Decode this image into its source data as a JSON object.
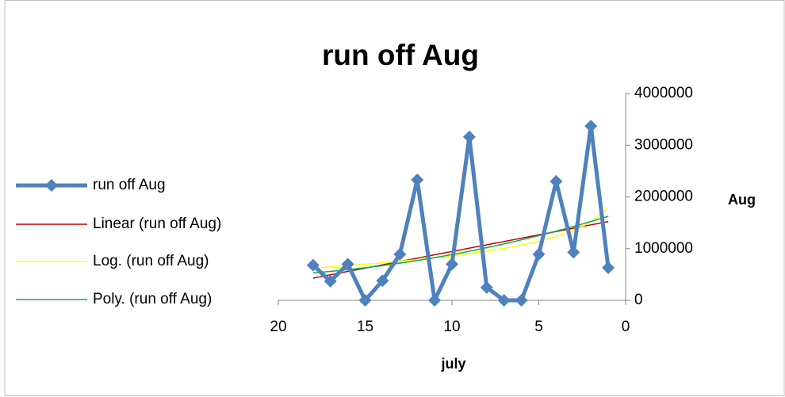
{
  "chart_data": {
    "type": "line",
    "title": "run off Aug",
    "x_label": "july",
    "y_label": "Aug",
    "x": [
      18,
      17,
      16,
      15,
      14,
      13,
      12,
      11,
      10,
      9,
      8,
      7,
      6,
      5,
      4,
      3,
      2,
      1
    ],
    "series": [
      {
        "name": "run off Aug",
        "color": "#4f81bd",
        "values": [
          680000,
          370000,
          700000,
          0,
          380000,
          890000,
          2330000,
          0,
          700000,
          3160000,
          250000,
          0,
          0,
          890000,
          2300000,
          930000,
          3370000,
          630000
        ]
      }
    ],
    "trendlines": [
      {
        "name": "Linear (run off Aug)",
        "kind": "linear",
        "color": "#c00000"
      },
      {
        "name": "Log. (run off Aug)",
        "kind": "log",
        "color": "#ffff00"
      },
      {
        "name": "Poly. (run off Aug)",
        "kind": "poly",
        "color": "#00b050"
      }
    ],
    "xlim": [
      20,
      0
    ],
    "xticks": [
      20,
      15,
      10,
      5,
      0
    ],
    "ylim": [
      0,
      4000000
    ],
    "yticks": [
      0,
      1000000,
      2000000,
      3000000,
      4000000
    ],
    "legend": "left"
  }
}
